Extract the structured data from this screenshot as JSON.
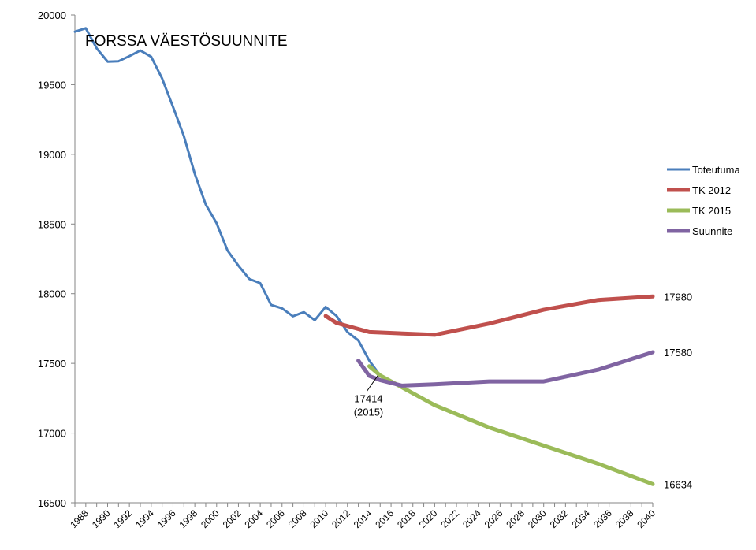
{
  "chart_data": {
    "type": "line",
    "title": "FORSSA VÄESTÖSUUNNITE",
    "ylim": [
      16500,
      20000
    ],
    "yticks": [
      16500,
      17000,
      17500,
      18000,
      18500,
      19000,
      19500,
      20000
    ],
    "xlim": [
      1987,
      2040
    ],
    "xticks": [
      1988,
      1990,
      1992,
      1994,
      1996,
      1998,
      2000,
      2002,
      2004,
      2006,
      2008,
      2010,
      2012,
      2014,
      2016,
      2018,
      2020,
      2022,
      2024,
      2026,
      2028,
      2030,
      2032,
      2034,
      2036,
      2038,
      2040
    ],
    "legend_position": "right",
    "grid": false,
    "series": [
      {
        "name": "Toteutuma",
        "color": "#4a7ebb",
        "width": 3,
        "x": [
          1987,
          1988,
          1989,
          1990,
          1991,
          1992,
          1993,
          1994,
          1995,
          1996,
          1997,
          1998,
          1999,
          2000,
          2001,
          2002,
          2003,
          2004,
          2005,
          2006,
          2007,
          2008,
          2009,
          2010,
          2011,
          2012,
          2013,
          2014,
          2015
        ],
        "y": [
          19880,
          19905,
          19760,
          19665,
          19668,
          19705,
          19745,
          19700,
          19545,
          19340,
          19130,
          18860,
          18640,
          18505,
          18310,
          18200,
          18105,
          18075,
          17920,
          17895,
          17838,
          17868,
          17810,
          17905,
          17840,
          17725,
          17665,
          17520,
          17414
        ]
      },
      {
        "name": "TK 2012",
        "color": "#c0504d",
        "width": 5,
        "x": [
          2010,
          2011,
          2014,
          2020,
          2025,
          2030,
          2035,
          2040
        ],
        "y": [
          17840,
          17790,
          17725,
          17705,
          17785,
          17885,
          17955,
          17980
        ]
      },
      {
        "name": "TK 2015",
        "color": "#9bbb59",
        "width": 5,
        "x": [
          2014,
          2015,
          2020,
          2025,
          2030,
          2035,
          2040
        ],
        "y": [
          17480,
          17414,
          17200,
          17040,
          16910,
          16780,
          16634
        ]
      },
      {
        "name": "Suunnite",
        "color": "#8064a2",
        "width": 5,
        "x": [
          2013,
          2014,
          2015,
          2017,
          2020,
          2025,
          2030,
          2035,
          2040
        ],
        "y": [
          17520,
          17410,
          17380,
          17340,
          17350,
          17370,
          17370,
          17455,
          17580
        ]
      }
    ],
    "end_labels": [
      {
        "value": "17980",
        "x": 2040,
        "y": 17980
      },
      {
        "value": "17580",
        "x": 2040,
        "y": 17580
      },
      {
        "value": "16634",
        "x": 2040,
        "y": 16634
      }
    ],
    "annotation": {
      "line1": "17414",
      "line2": "(2015)",
      "x": 2014.8,
      "y": 17414
    }
  }
}
